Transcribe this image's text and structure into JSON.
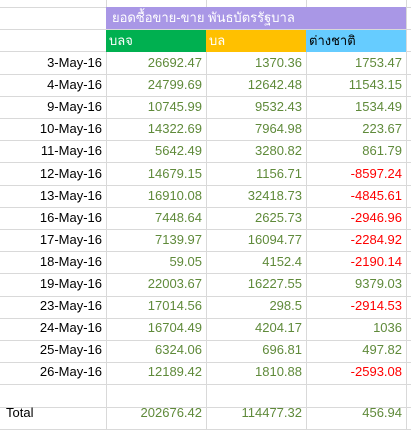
{
  "header": {
    "title": "ยอดซื้อขาย-ขาย พันธบัตรรัฐบาล",
    "col_b": "บลจ",
    "col_c": "บล",
    "col_d": "ต่างชาติ"
  },
  "rows": [
    {
      "date": "3-May-16",
      "b": "26692.47",
      "c": "1370.36",
      "d": "1753.47"
    },
    {
      "date": "4-May-16",
      "b": "24799.69",
      "c": "12642.48",
      "d": "11543.15"
    },
    {
      "date": "9-May-16",
      "b": "10745.99",
      "c": "9532.43",
      "d": "1534.49"
    },
    {
      "date": "10-May-16",
      "b": "14322.69",
      "c": "7964.98",
      "d": "223.67"
    },
    {
      "date": "11-May-16",
      "b": "5642.49",
      "c": "3280.82",
      "d": "861.79"
    },
    {
      "date": "12-May-16",
      "b": "14679.15",
      "c": "1156.71",
      "d": "-8597.24"
    },
    {
      "date": "13-May-16",
      "b": "16910.08",
      "c": "32418.73",
      "d": "-4845.61"
    },
    {
      "date": "16-May-16",
      "b": "7448.64",
      "c": "2625.73",
      "d": "-2946.96"
    },
    {
      "date": "17-May-16",
      "b": "7139.97",
      "c": "16094.77",
      "d": "-2284.92"
    },
    {
      "date": "18-May-16",
      "b": "59.05",
      "c": "4152.4",
      "d": "-2190.14"
    },
    {
      "date": "19-May-16",
      "b": "22003.67",
      "c": "16227.55",
      "d": "9379.03"
    },
    {
      "date": "23-May-16",
      "b": "17014.56",
      "c": "298.5",
      "d": "-2914.53"
    },
    {
      "date": "24-May-16",
      "b": "16704.49",
      "c": "4204.17",
      "d": "1036"
    },
    {
      "date": "25-May-16",
      "b": "6324.06",
      "c": "696.81",
      "d": "497.82"
    },
    {
      "date": "26-May-16",
      "b": "12189.42",
      "c": "1810.88",
      "d": "-2593.08"
    }
  ],
  "total": {
    "label": "Total",
    "b": "202676.42",
    "c": "114477.32",
    "d": "456.94"
  },
  "colors": {
    "title_bg": "#a997e6",
    "col_b_bg": "#00b050",
    "col_c_bg": "#ffc000",
    "col_d_bg": "#66ccff",
    "value_green": "#5f8a3a",
    "negative_red": "#ff0000"
  }
}
